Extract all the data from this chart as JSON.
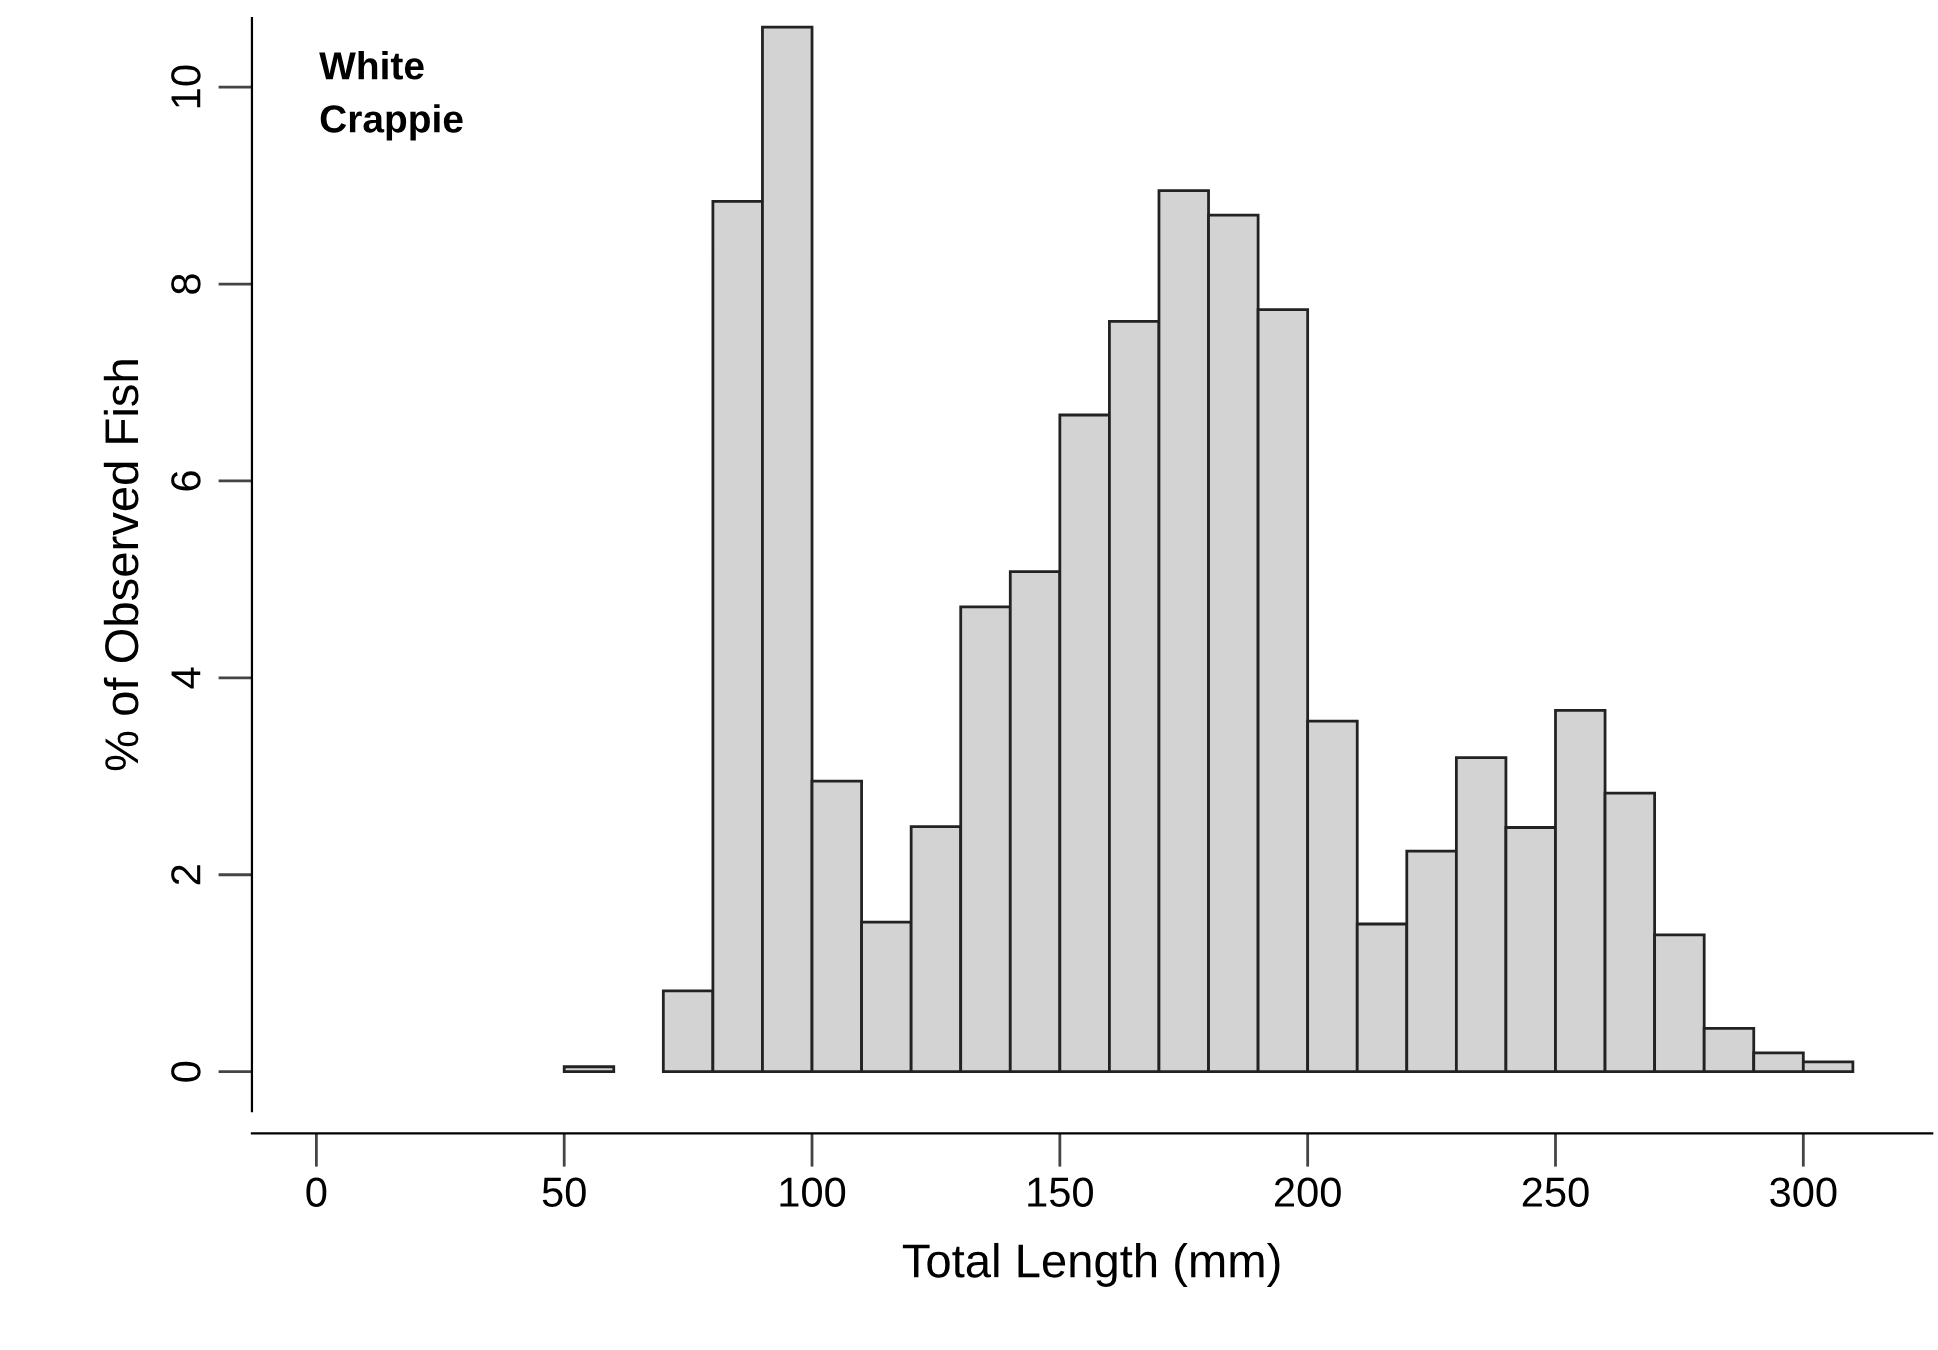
{
  "chart_data": {
    "type": "histogram",
    "bins": [
      0,
      10,
      20,
      30,
      40,
      50,
      60,
      70,
      80,
      90,
      100,
      110,
      120,
      130,
      140,
      150,
      160,
      170,
      180,
      190,
      200,
      210,
      220,
      230,
      240,
      250,
      260,
      270,
      280,
      290,
      300,
      310,
      320,
      330
    ],
    "values": [
      0,
      0,
      0,
      0,
      0,
      0.05,
      0,
      0.82,
      8.84,
      10.61,
      2.95,
      1.52,
      2.49,
      4.72,
      5.08,
      6.67,
      7.62,
      8.95,
      8.7,
      7.74,
      3.56,
      1.5,
      2.24,
      3.19,
      2.48,
      3.67,
      2.83,
      1.39,
      0.44,
      0.19,
      0.1,
      0,
      0
    ],
    "color": "#d3d3d3",
    "xlabel": "Total Length (mm)",
    "ylabel": "% of Observed Fish",
    "annotations": [
      "White\nCrappie"
    ],
    "xlim": [
      -13,
      326
    ],
    "ylim": [
      -0.4,
      10.7
    ],
    "xticks": [
      0,
      50,
      100,
      150,
      200,
      250,
      300
    ],
    "yticks": [
      0,
      2,
      4,
      6,
      8,
      10
    ],
    "grid": false
  }
}
